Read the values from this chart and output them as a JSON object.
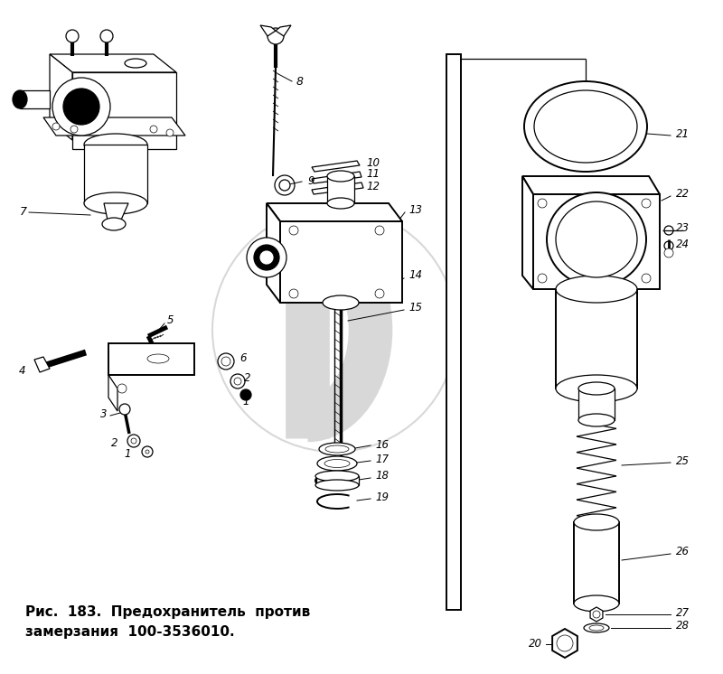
{
  "caption_line1": "Рис.  183.  Предохранитель  против",
  "caption_line2": "замерзания  100-3536010.",
  "bg_color": "#ffffff",
  "watermark_color": "#d8d8d8",
  "fig_width": 8.0,
  "fig_height": 7.46,
  "dpi": 100
}
